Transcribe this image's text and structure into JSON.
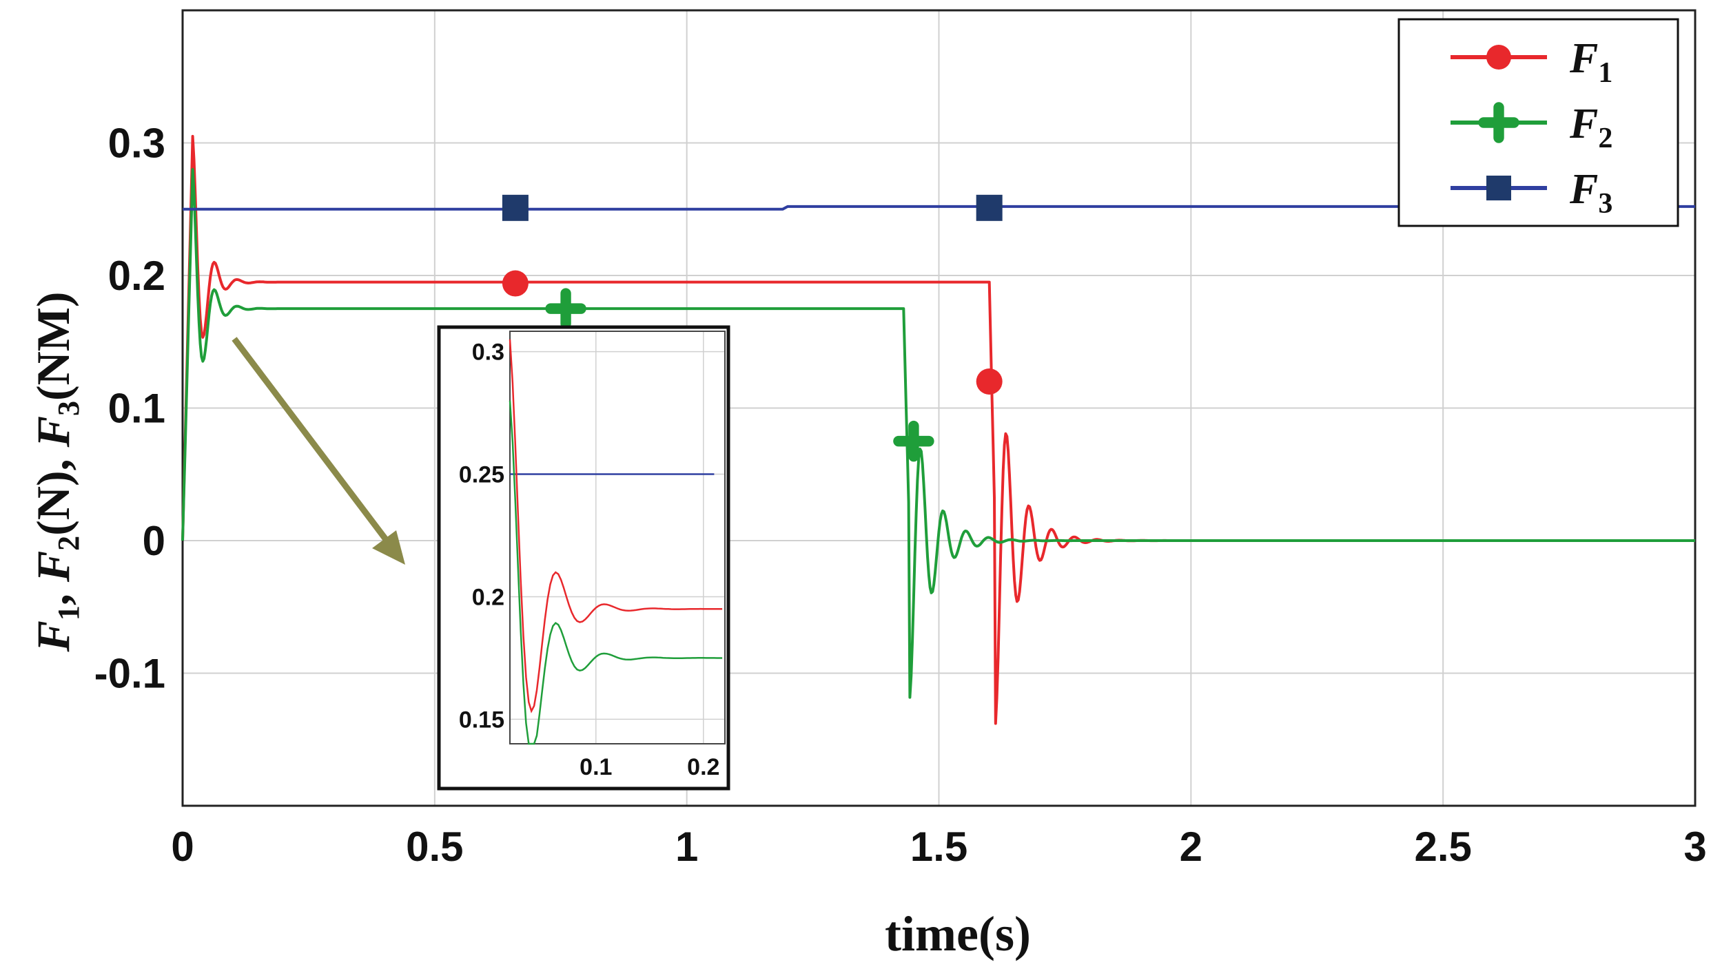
{
  "chart_data": {
    "type": "line",
    "xlabel": "time(s)",
    "ylabel": "F1, F2(N), F3(NM)",
    "ylabel_parts": {
      "f1": "F",
      "s1": "1",
      "sep1": ", ",
      "f2": "F",
      "s2": "2",
      "u2": "(N), ",
      "f3": "F",
      "s3": "3",
      "u3": "(NM)"
    },
    "xlim": [
      0,
      3
    ],
    "ylim": [
      -0.2,
      0.4
    ],
    "x_ticks": [
      0,
      0.5,
      1,
      1.5,
      2,
      2.5,
      3
    ],
    "x_tick_labels": [
      "0",
      "0.5",
      "1",
      "1.5",
      "2",
      "2.5",
      "3"
    ],
    "y_ticks": [
      -0.1,
      0,
      0.1,
      0.2,
      0.3
    ],
    "y_tick_labels": [
      "-0.1",
      "0",
      "0.1",
      "0.2",
      "0.3"
    ],
    "grid": true,
    "legend_position": "top-right",
    "series": [
      {
        "name": "F1",
        "legend_main": "F",
        "legend_sub": "1",
        "color": "#e8282c",
        "marker": "circle",
        "steady": 0.195,
        "peak": 0.305,
        "drop_time": 1.6,
        "final": 0.0,
        "undershoot": -0.14,
        "marker_points": [
          [
            0.66,
            0.194
          ],
          [
            1.6,
            0.12
          ]
        ]
      },
      {
        "name": "F2",
        "legend_main": "F",
        "legend_sub": "2",
        "color": "#1f9e3a",
        "marker": "plus",
        "steady": 0.175,
        "peak": 0.28,
        "drop_time": 1.43,
        "final": 0.0,
        "undershoot": -0.12,
        "marker_points": [
          [
            0.76,
            0.175
          ],
          [
            1.45,
            0.075
          ]
        ]
      },
      {
        "name": "F3",
        "legend_main": "F",
        "legend_sub": "3",
        "color": "#2f3fa0",
        "marker": "square",
        "steady": 0.25,
        "final": 0.252,
        "marker_points": [
          [
            0.66,
            0.251
          ],
          [
            1.6,
            0.251
          ]
        ]
      }
    ],
    "inset": {
      "xlim": [
        0.02,
        0.22
      ],
      "ylim": [
        0.14,
        0.31
      ],
      "x_ticks": [
        0.1,
        0.2
      ],
      "x_tick_labels": [
        "0.1",
        "0.2"
      ],
      "y_ticks": [
        0.15,
        0.2,
        0.25,
        0.3
      ],
      "y_tick_labels": [
        "0.15",
        "0.2",
        "0.25",
        "0.3"
      ],
      "annotation": "arrow from main plot peak region to inset"
    }
  },
  "colors": {
    "arrow": "#8b8a4a",
    "grid": "#d0d0d0",
    "axis": "#222222"
  }
}
